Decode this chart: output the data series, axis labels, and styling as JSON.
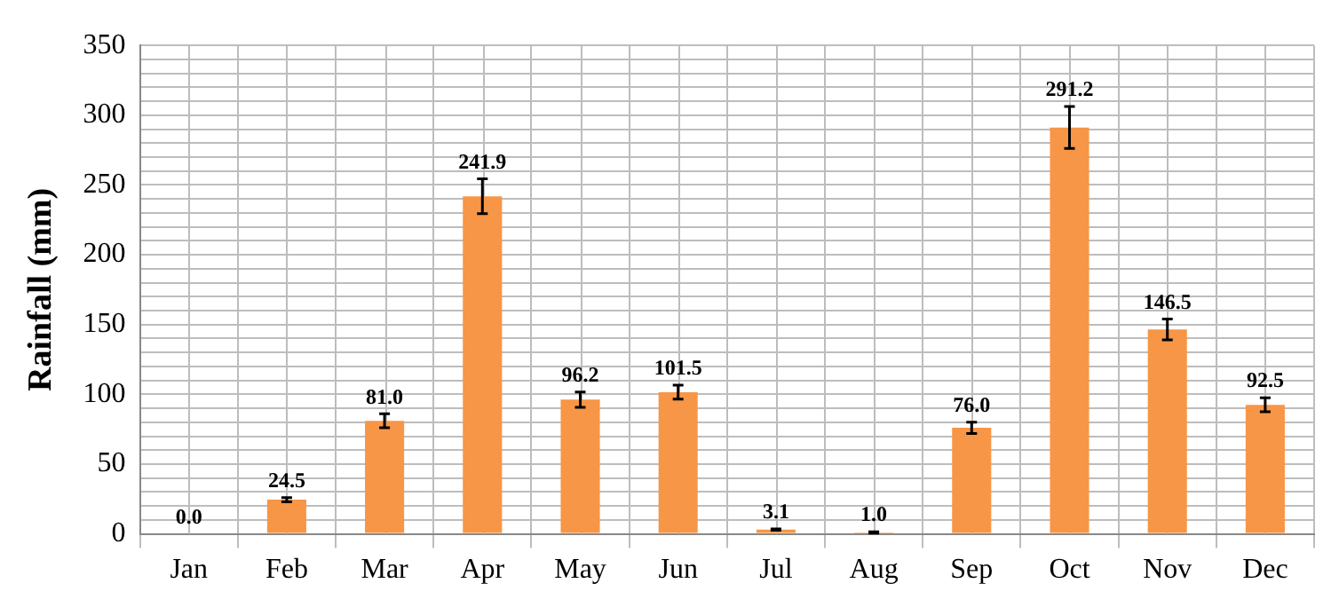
{
  "chart_data": {
    "type": "bar",
    "ylabel": "Rainfall (mm)",
    "categories": [
      "Jan",
      "Feb",
      "Mar",
      "Apr",
      "May",
      "Jun",
      "Jul",
      "Aug",
      "Sep",
      "Oct",
      "Nov",
      "Dec"
    ],
    "values": [
      0.0,
      24.5,
      81.0,
      241.9,
      96.2,
      101.5,
      3.1,
      1.0,
      76.0,
      291.2,
      146.5,
      92.5
    ],
    "errors": [
      null,
      1.5,
      5,
      12.5,
      5.5,
      5,
      0.5,
      0.5,
      4,
      15,
      7.5,
      5
    ],
    "color": "#f79646",
    "ylim": [
      0,
      350
    ],
    "yticks": [
      0,
      {
        "value": 10,
        "label": null
      },
      {
        "value": 20,
        "label": null
      },
      {
        "value": 30,
        "label": null
      },
      {
        "value": 40,
        "label": null
      },
      50,
      {
        "value": 60,
        "label": null
      },
      {
        "value": 70,
        "label": null
      },
      {
        "value": 80,
        "label": null
      },
      {
        "value": 90,
        "label": null
      },
      100,
      {
        "value": 110,
        "label": null
      },
      {
        "value": 120,
        "label": null
      },
      {
        "value": 130,
        "label": null
      },
      {
        "value": 140,
        "label": null
      },
      150,
      {
        "value": 160,
        "label": null
      },
      {
        "value": 170,
        "label": null
      },
      {
        "value": 180,
        "label": null
      },
      {
        "value": 190,
        "label": null
      },
      200,
      {
        "value": 210,
        "label": null
      },
      {
        "value": 220,
        "label": null
      },
      {
        "value": 230,
        "label": null
      },
      {
        "value": 240,
        "label": null
      },
      250,
      {
        "value": 260,
        "label": null
      },
      {
        "value": 270,
        "label": null
      },
      {
        "value": 280,
        "label": null
      },
      {
        "value": 290,
        "label": null
      },
      300,
      {
        "value": 310,
        "label": null
      },
      {
        "value": 320,
        "label": null
      },
      {
        "value": 330,
        "label": null
      },
      {
        "value": 340,
        "label": null
      },
      350
    ],
    "value_labels": [
      "0.0",
      "24.5",
      "81.0",
      "241.9",
      "96.2",
      "101.5",
      "3.1",
      "1.0",
      "76.0",
      "291.2",
      "146.5",
      "92.5"
    ],
    "grid": true,
    "legend": false
  }
}
